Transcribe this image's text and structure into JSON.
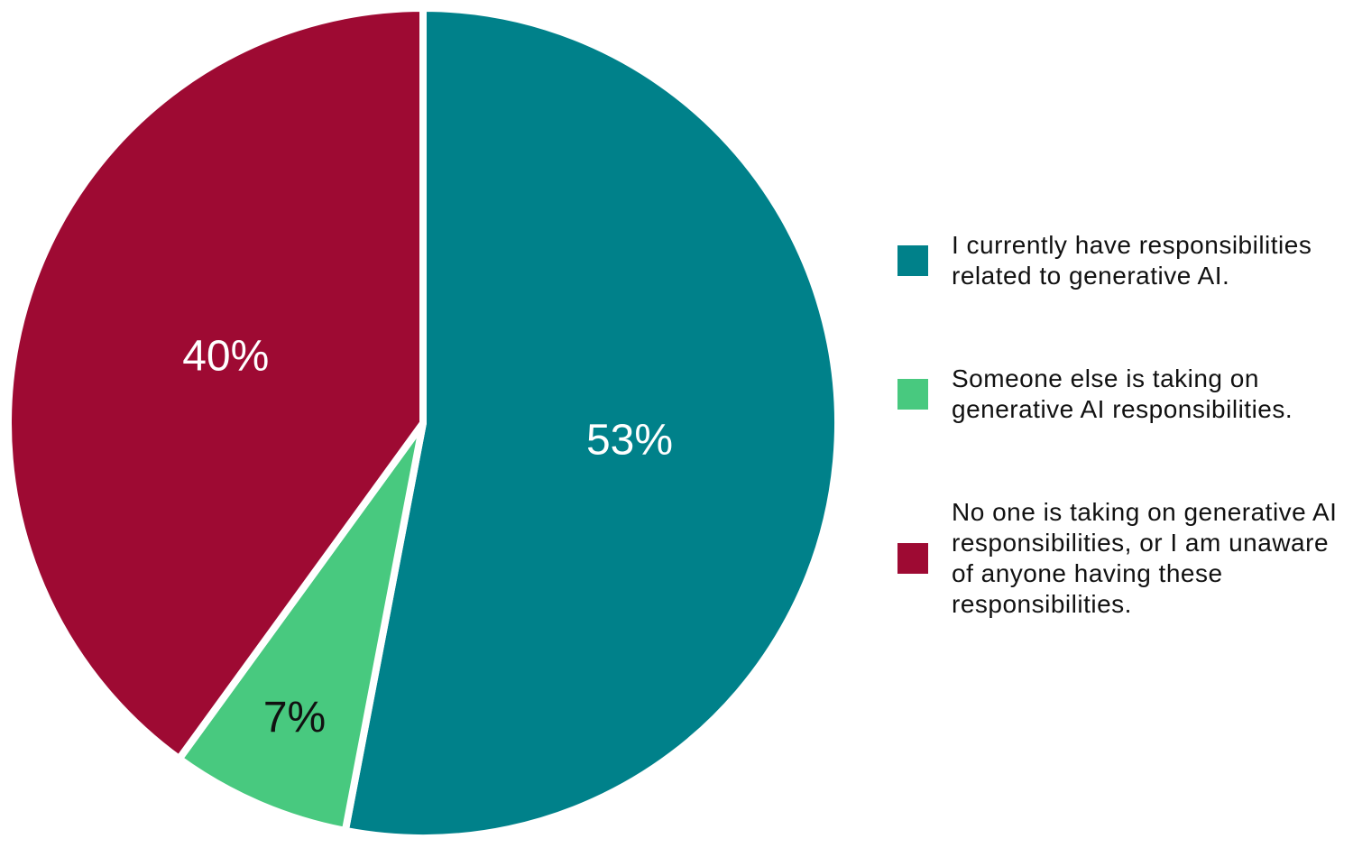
{
  "chart_data": {
    "type": "pie",
    "categories": [
      "I currently have responsibilities related to generative AI.",
      "Someone else is taking on generative AI responsibilities.",
      "No one is taking on generative AI responsibilities, or I am unaware of anyone having these responsibilities."
    ],
    "values": [
      53,
      7,
      40
    ],
    "value_labels": [
      "53%",
      "7%",
      "40%"
    ],
    "colors": [
      "#00818a",
      "#48c97f",
      "#9e0a33"
    ],
    "legend": "right"
  }
}
